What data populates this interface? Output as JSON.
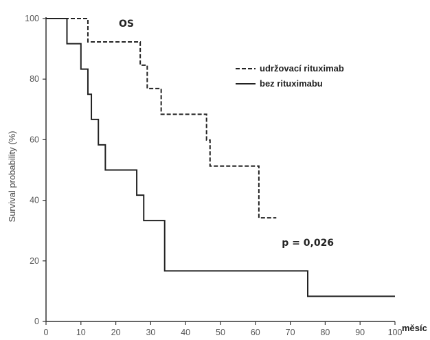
{
  "chart_data": {
    "type": "line",
    "subtype": "kaplan-meier-step",
    "title": "OS",
    "xlabel": "měsíc",
    "ylabel": "Survival probability (%)",
    "xlim": [
      0,
      100
    ],
    "ylim": [
      0,
      100
    ],
    "x_ticks": [
      0,
      10,
      20,
      30,
      40,
      50,
      60,
      70,
      80,
      90,
      100
    ],
    "y_ticks": [
      0,
      20,
      40,
      60,
      80,
      100
    ],
    "grid": false,
    "legend_position": "top-right",
    "series": [
      {
        "name": "udržovací rituximab",
        "style": "dashed",
        "color": "#222222",
        "x": [
          0,
          12,
          27,
          29,
          33,
          46,
          47,
          61,
          66
        ],
        "y": [
          100,
          92.3,
          84.6,
          76.9,
          68.4,
          59.9,
          51.3,
          34.2,
          34.2
        ]
      },
      {
        "name": "bez rituximabu",
        "style": "solid",
        "color": "#222222",
        "x": [
          0,
          6,
          10,
          12,
          13,
          15,
          17,
          26,
          28,
          34,
          75,
          100
        ],
        "y": [
          100,
          91.7,
          83.3,
          75,
          66.7,
          58.3,
          50,
          41.7,
          33.3,
          16.7,
          8.3,
          8.3
        ]
      }
    ],
    "annotations": [
      {
        "text": "p = 0,026",
        "x": 66,
        "y": 25
      }
    ]
  }
}
